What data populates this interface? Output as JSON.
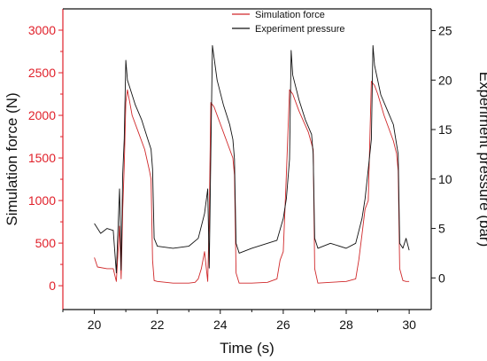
{
  "chart_data": {
    "type": "line",
    "xlabel": "Time (s)",
    "ylabel_left": "Simulation force (N)",
    "ylabel_right": "Experiment pressure (bar)",
    "xlim": [
      19,
      30.7
    ],
    "ylim_left": [
      -280,
      3250
    ],
    "ylim_right": [
      -3.2,
      27.2
    ],
    "x_ticks": [
      20,
      22,
      24,
      26,
      28,
      30
    ],
    "y_ticks_left": [
      0,
      500,
      1000,
      1500,
      2000,
      2500,
      3000
    ],
    "y_ticks_right": [
      0,
      5,
      10,
      15,
      20,
      25
    ],
    "grid": false,
    "legend_position": "top-right",
    "colors": {
      "left_axis": "#e0202a",
      "simulation": "#d0282a",
      "experiment": "#111111"
    },
    "series": [
      {
        "name": "Simulation force",
        "axis": "left",
        "x": [
          20.0,
          20.1,
          20.4,
          20.6,
          20.7,
          20.8,
          20.85,
          20.9,
          20.95,
          21.0,
          21.05,
          21.1,
          21.2,
          21.4,
          21.6,
          21.75,
          21.8,
          21.85,
          21.9,
          22.0,
          22.5,
          23.0,
          23.2,
          23.3,
          23.4,
          23.5,
          23.6,
          23.65,
          23.7,
          23.8,
          24.0,
          24.2,
          24.4,
          24.45,
          24.5,
          24.6,
          25.0,
          25.5,
          25.8,
          25.9,
          26.0,
          26.1,
          26.2,
          26.3,
          26.5,
          26.8,
          26.95,
          27.0,
          27.1,
          27.5,
          28.0,
          28.3,
          28.4,
          28.5,
          28.6,
          28.7,
          28.8,
          28.9,
          29.0,
          29.2,
          29.5,
          29.6,
          29.65,
          29.7,
          29.8,
          29.9,
          30.0
        ],
        "y": [
          330,
          220,
          200,
          200,
          50,
          700,
          80,
          900,
          1400,
          2150,
          2300,
          2200,
          2000,
          1800,
          1600,
          1350,
          1250,
          300,
          60,
          50,
          30,
          30,
          40,
          80,
          200,
          400,
          50,
          800,
          2150,
          2100,
          1900,
          1700,
          1500,
          1300,
          150,
          30,
          30,
          40,
          80,
          300,
          400,
          1300,
          2300,
          2250,
          2050,
          1800,
          1600,
          200,
          30,
          40,
          50,
          80,
          300,
          600,
          900,
          1000,
          2400,
          2350,
          2250,
          2000,
          1700,
          1550,
          1350,
          200,
          60,
          50,
          50
        ]
      },
      {
        "name": "Experiment pressure",
        "axis": "right",
        "x": [
          20.0,
          20.2,
          20.4,
          20.6,
          20.7,
          20.8,
          20.85,
          20.9,
          20.95,
          21.0,
          21.05,
          21.1,
          21.3,
          21.5,
          21.7,
          21.8,
          21.85,
          21.9,
          22.0,
          22.5,
          23.0,
          23.3,
          23.5,
          23.6,
          23.65,
          23.7,
          23.75,
          23.9,
          24.1,
          24.3,
          24.4,
          24.45,
          24.5,
          24.6,
          25.0,
          25.5,
          25.8,
          26.0,
          26.1,
          26.2,
          26.25,
          26.3,
          26.5,
          26.7,
          26.9,
          26.95,
          27.0,
          27.1,
          27.5,
          28.0,
          28.3,
          28.5,
          28.6,
          28.7,
          28.8,
          28.85,
          28.9,
          29.1,
          29.3,
          29.5,
          29.6,
          29.65,
          29.7,
          29.8,
          29.9,
          30.0
        ],
        "y": [
          5.5,
          4.5,
          5.0,
          4.8,
          0.5,
          9.0,
          0.8,
          10.5,
          14.0,
          22.0,
          20.0,
          19.5,
          17.5,
          16.0,
          14.0,
          13.0,
          11.0,
          4.0,
          3.2,
          3.0,
          3.2,
          4.0,
          6.5,
          9.0,
          1.0,
          12.5,
          23.5,
          20.0,
          17.5,
          15.5,
          14.0,
          12.0,
          3.5,
          2.5,
          3.0,
          3.5,
          3.8,
          6.0,
          8.0,
          12.0,
          23.0,
          20.5,
          18.0,
          16.0,
          14.5,
          12.5,
          4.0,
          3.0,
          3.5,
          3.0,
          3.5,
          6.0,
          8.0,
          11.0,
          14.0,
          23.5,
          21.5,
          18.5,
          17.0,
          15.5,
          13.5,
          12.5,
          3.5,
          3.0,
          4.0,
          2.8
        ]
      }
    ]
  }
}
